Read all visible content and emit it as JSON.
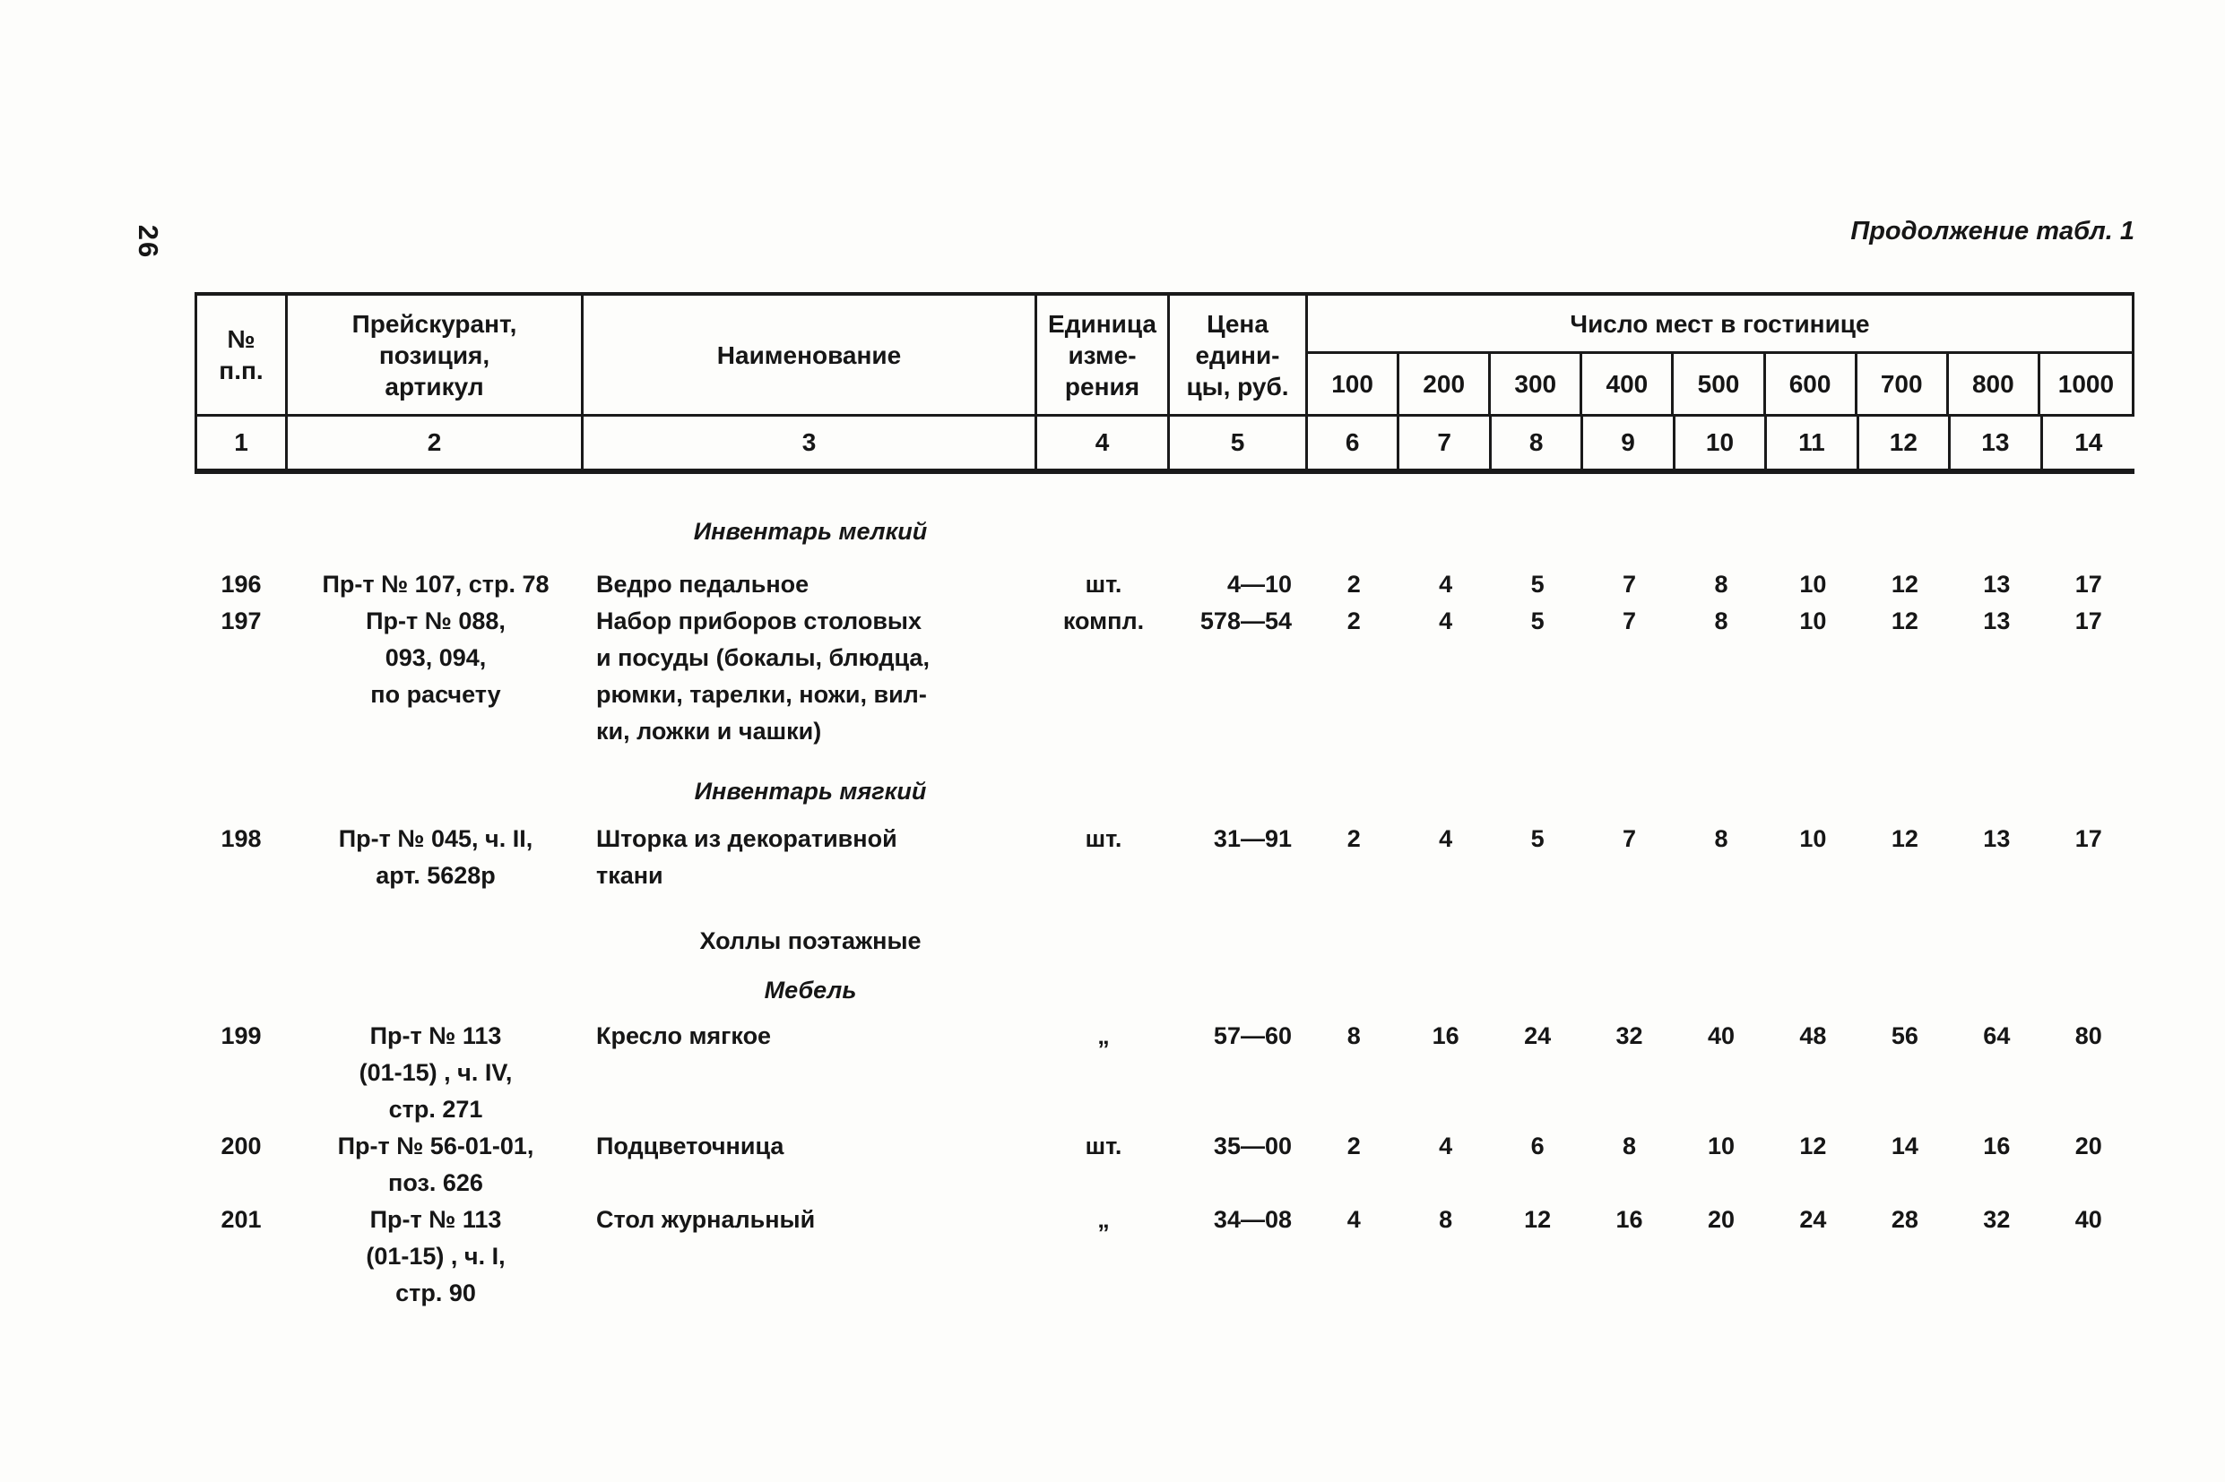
{
  "page": {
    "number": "26",
    "caption": "Продолжение табл. 1"
  },
  "header": {
    "num": "№\nп.п.",
    "pricelist": "Прейскурант,\nпозиция,\nартикул",
    "name": "Наименование",
    "unit": "Единица\nизме-\nрения",
    "price": "Цена\nедини-\nцы, руб.",
    "places_title": "Число мест в гостинице",
    "places": [
      "100",
      "200",
      "300",
      "400",
      "500",
      "600",
      "700",
      "800",
      "1000"
    ],
    "col_numbers": [
      "1",
      "2",
      "3",
      "4",
      "5",
      "6",
      "7",
      "8",
      "9",
      "10",
      "11",
      "12",
      "13",
      "14"
    ]
  },
  "sections": {
    "small_inventory": "Инвентарь мелкий",
    "soft_inventory": "Инвентарь мягкий",
    "floor_halls": "Холлы поэтажные",
    "furniture": "Мебель"
  },
  "rows": [
    {
      "num": "196",
      "pricelist": "Пр-т № 107, стр. 78",
      "name": "Ведро педальное",
      "unit": "шт.",
      "price": "4—10",
      "values": [
        "2",
        "4",
        "5",
        "7",
        "8",
        "10",
        "12",
        "13",
        "17"
      ]
    },
    {
      "num": "197",
      "pricelist": "Пр-т № 088,\n093, 094,\nпо расчету",
      "name": "Набор приборов столовых\nи посуды (бокалы, блюдца,\nрюмки, тарелки, ножи, вил-\nки, ложки и чашки)",
      "unit": "компл.",
      "price": "578—54",
      "values": [
        "2",
        "4",
        "5",
        "7",
        "8",
        "10",
        "12",
        "13",
        "17"
      ]
    },
    {
      "num": "198",
      "pricelist": "Пр-т № 045, ч. II,\nарт. 5628р",
      "name": "Шторка из декоративной\nткани",
      "unit": "шт.",
      "price": "31—91",
      "values": [
        "2",
        "4",
        "5",
        "7",
        "8",
        "10",
        "12",
        "13",
        "17"
      ]
    },
    {
      "num": "199",
      "pricelist": "Пр-т № 113\n(01-15) , ч. IV,\nстр. 271",
      "name": "Кресло мягкое",
      "unit": "„",
      "price": "57—60",
      "values": [
        "8",
        "16",
        "24",
        "32",
        "40",
        "48",
        "56",
        "64",
        "80"
      ]
    },
    {
      "num": "200",
      "pricelist": "Пр-т № 56-01-01,\nпоз. 626",
      "name": "Подцветочница",
      "unit": "шт.",
      "price": "35—00",
      "values": [
        "2",
        "4",
        "6",
        "8",
        "10",
        "12",
        "14",
        "16",
        "20"
      ]
    },
    {
      "num": "201",
      "pricelist": "Пр-т № 113\n(01-15) , ч. I,\nстр. 90",
      "name": "Стол журнальный",
      "unit": "„",
      "price": "34—08",
      "values": [
        "4",
        "8",
        "12",
        "16",
        "20",
        "24",
        "28",
        "32",
        "40"
      ]
    }
  ]
}
